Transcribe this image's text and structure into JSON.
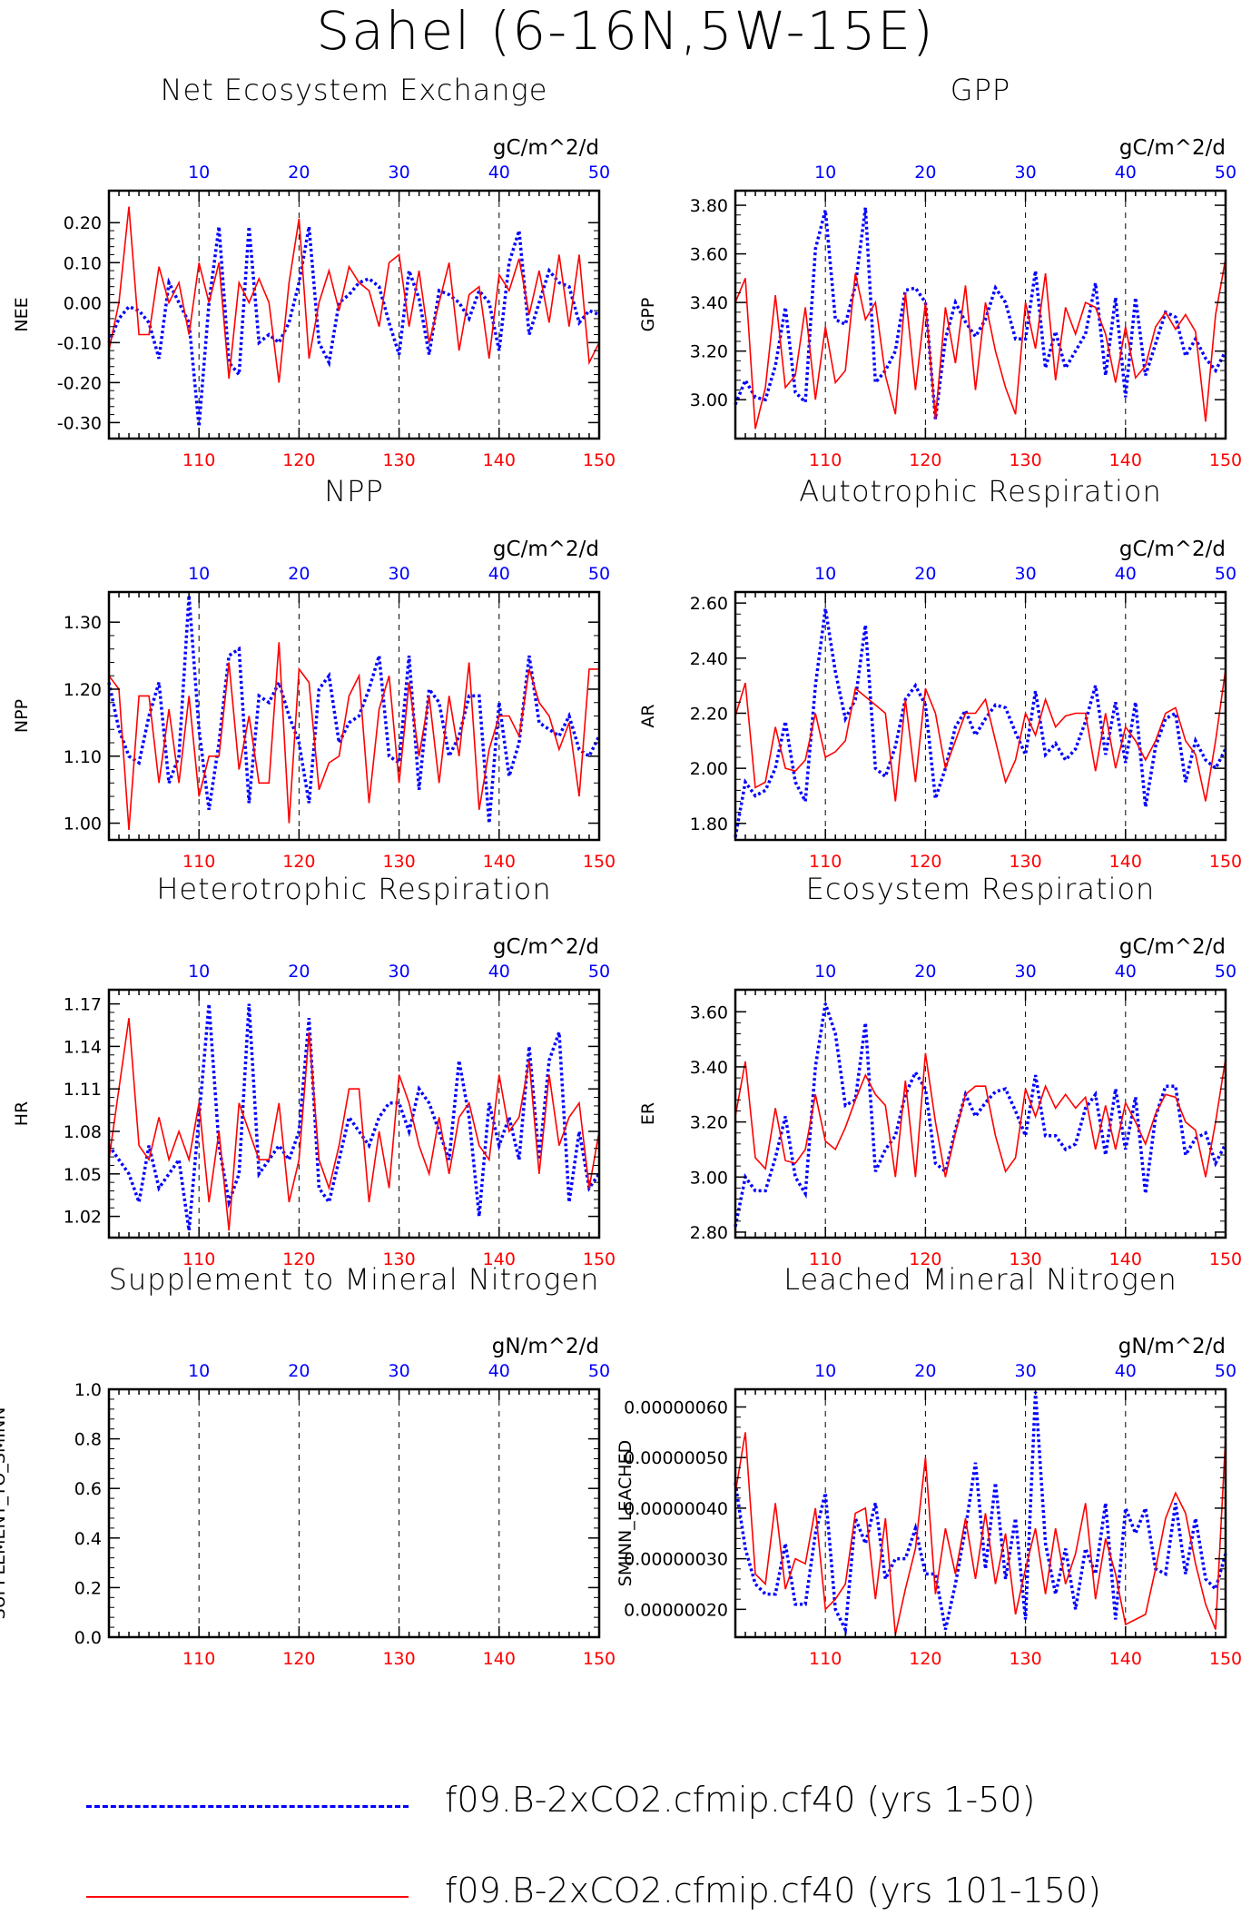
{
  "title": "Sahel (6-16N,5W-15E)",
  "colors": {
    "run1": "#0000ff",
    "run2": "#ff0000",
    "axis": "#000000"
  },
  "legend": [
    {
      "label": "f09.B-2xCO2.cfmip.cf40 (yrs 1-50)",
      "color": "#0000ff",
      "style": "dashed"
    },
    {
      "label": "f09.B-2xCO2.cfmip.cf40 (yrs 101-150)",
      "color": "#ff0000",
      "style": "solid"
    }
  ],
  "chart_data": [
    {
      "type": "line",
      "title": "Net Ecosystem Exchange",
      "ylabel": "NEE",
      "units": "gC/m^2/d",
      "ylim": [
        -0.34,
        0.28
      ],
      "yticks": [
        -0.3,
        -0.2,
        -0.1,
        0.0,
        0.1,
        0.2
      ],
      "ytick_labels": [
        "-0.30",
        "-0.20",
        "-0.10",
        "0.00",
        "0.10",
        "0.20"
      ],
      "bottom_x_labels": [
        "110",
        "120",
        "130",
        "140",
        "150"
      ],
      "top_x_labels": [
        "10",
        "20",
        "30",
        "40",
        "50"
      ],
      "series": [
        {
          "x_start": 1,
          "values": [
            -0.1,
            -0.04,
            -0.01,
            -0.02,
            -0.05,
            -0.14,
            0.05,
            0.0,
            -0.05,
            -0.31,
            0.0,
            0.19,
            -0.15,
            -0.18,
            0.19,
            -0.1,
            -0.08,
            -0.1,
            -0.05,
            0.05,
            0.19,
            -0.1,
            -0.15,
            0.0,
            0.02,
            0.05,
            0.06,
            0.04,
            -0.05,
            -0.13,
            0.08,
            0.01,
            -0.13,
            0.03,
            0.02,
            0.0,
            -0.04,
            0.03,
            0.0,
            -0.12,
            0.1,
            0.18,
            -0.08,
            0.0,
            0.08,
            0.05,
            0.04,
            -0.05,
            -0.02,
            -0.03
          ]
        },
        {
          "x_start": 101,
          "values": [
            -0.12,
            0.0,
            0.24,
            -0.08,
            -0.08,
            0.09,
            0.0,
            0.05,
            -0.08,
            0.1,
            0.0,
            0.1,
            -0.19,
            0.05,
            0.0,
            0.06,
            0.0,
            -0.2,
            0.05,
            0.21,
            -0.14,
            0.0,
            0.08,
            -0.02,
            0.09,
            0.05,
            0.03,
            -0.06,
            0.1,
            0.12,
            -0.06,
            0.08,
            -0.1,
            0.0,
            0.1,
            -0.12,
            0.02,
            0.04,
            -0.14,
            0.07,
            0.03,
            0.11,
            -0.03,
            0.08,
            -0.05,
            0.12,
            -0.06,
            0.12,
            -0.15,
            -0.1
          ]
        }
      ]
    },
    {
      "type": "line",
      "title": "GPP",
      "ylabel": "GPP",
      "units": "gC/m^2/d",
      "ylim": [
        2.84,
        3.86
      ],
      "yticks": [
        3.0,
        3.2,
        3.4,
        3.6,
        3.8
      ],
      "ytick_labels": [
        "3.00",
        "3.20",
        "3.40",
        "3.60",
        "3.80"
      ],
      "bottom_x_labels": [
        "110",
        "120",
        "130",
        "140",
        "150"
      ],
      "top_x_labels": [
        "10",
        "20",
        "30",
        "40",
        "50"
      ],
      "series": [
        {
          "x_start": 1,
          "values": [
            2.98,
            3.08,
            3.01,
            3.0,
            3.14,
            3.38,
            3.03,
            2.99,
            3.62,
            3.78,
            3.33,
            3.31,
            3.47,
            3.79,
            3.07,
            3.12,
            3.2,
            3.45,
            3.46,
            3.4,
            2.92,
            3.25,
            3.4,
            3.32,
            3.26,
            3.33,
            3.46,
            3.4,
            3.25,
            3.25,
            3.53,
            3.13,
            3.28,
            3.13,
            3.2,
            3.27,
            3.48,
            3.1,
            3.42,
            3.01,
            3.42,
            3.1,
            3.23,
            3.36,
            3.34,
            3.18,
            3.25,
            3.17,
            3.12,
            3.2
          ]
        },
        {
          "x_start": 101,
          "values": [
            3.4,
            3.5,
            2.88,
            3.05,
            3.43,
            3.05,
            3.1,
            3.38,
            3.0,
            3.3,
            3.07,
            3.12,
            3.52,
            3.33,
            3.4,
            3.1,
            2.94,
            3.44,
            3.04,
            3.4,
            2.92,
            3.38,
            3.15,
            3.47,
            3.04,
            3.4,
            3.2,
            3.05,
            2.94,
            3.4,
            3.21,
            3.52,
            3.08,
            3.38,
            3.27,
            3.4,
            3.38,
            3.27,
            3.07,
            3.3,
            3.09,
            3.14,
            3.3,
            3.36,
            3.29,
            3.35,
            3.28,
            2.91,
            3.35,
            3.58
          ]
        }
      ]
    },
    {
      "type": "line",
      "title": "NPP",
      "ylabel": "NPP",
      "units": "gC/m^2/d",
      "ylim": [
        0.975,
        1.345
      ],
      "yticks": [
        1.0,
        1.1,
        1.2,
        1.3
      ],
      "ytick_labels": [
        "1.00",
        "1.10",
        "1.20",
        "1.30"
      ],
      "bottom_x_labels": [
        "110",
        "120",
        "130",
        "140",
        "150"
      ],
      "top_x_labels": [
        "10",
        "20",
        "30",
        "40",
        "50"
      ],
      "series": [
        {
          "x_start": 1,
          "values": [
            1.21,
            1.14,
            1.1,
            1.09,
            1.16,
            1.21,
            1.06,
            1.1,
            1.34,
            1.14,
            1.02,
            1.12,
            1.25,
            1.26,
            1.03,
            1.19,
            1.18,
            1.21,
            1.16,
            1.12,
            1.03,
            1.2,
            1.22,
            1.12,
            1.15,
            1.16,
            1.2,
            1.25,
            1.1,
            1.09,
            1.25,
            1.05,
            1.2,
            1.18,
            1.1,
            1.13,
            1.19,
            1.19,
            1.0,
            1.18,
            1.07,
            1.12,
            1.25,
            1.15,
            1.14,
            1.13,
            1.16,
            1.11,
            1.1,
            1.13
          ]
        },
        {
          "x_start": 101,
          "values": [
            1.22,
            1.2,
            0.99,
            1.19,
            1.19,
            1.06,
            1.17,
            1.06,
            1.19,
            1.04,
            1.1,
            1.1,
            1.24,
            1.08,
            1.16,
            1.06,
            1.06,
            1.27,
            1.0,
            1.23,
            1.21,
            1.05,
            1.09,
            1.1,
            1.19,
            1.22,
            1.03,
            1.17,
            1.22,
            1.06,
            1.21,
            1.1,
            1.19,
            1.06,
            1.19,
            1.1,
            1.24,
            1.02,
            1.11,
            1.16,
            1.16,
            1.13,
            1.23,
            1.18,
            1.16,
            1.11,
            1.15,
            1.04,
            1.23,
            1.23
          ]
        }
      ]
    },
    {
      "type": "line",
      "title": "Autotrophic Respiration",
      "ylabel": "AR",
      "units": "gC/m^2/d",
      "ylim": [
        1.74,
        2.64
      ],
      "yticks": [
        1.8,
        2.0,
        2.2,
        2.4,
        2.6
      ],
      "ytick_labels": [
        "1.80",
        "2.00",
        "2.20",
        "2.40",
        "2.60"
      ],
      "bottom_x_labels": [
        "110",
        "120",
        "130",
        "140",
        "150"
      ],
      "top_x_labels": [
        "10",
        "20",
        "30",
        "40",
        "50"
      ],
      "series": [
        {
          "x_start": 1,
          "values": [
            1.75,
            1.95,
            1.9,
            1.92,
            2.0,
            2.17,
            1.95,
            1.88,
            2.3,
            2.58,
            2.35,
            2.18,
            2.25,
            2.52,
            2.0,
            1.97,
            2.08,
            2.25,
            2.3,
            2.23,
            1.89,
            2.0,
            2.15,
            2.21,
            2.12,
            2.18,
            2.23,
            2.22,
            2.13,
            2.05,
            2.28,
            2.05,
            2.09,
            2.03,
            2.07,
            2.17,
            2.3,
            2.05,
            2.24,
            2.02,
            2.24,
            1.86,
            2.08,
            2.18,
            2.2,
            1.95,
            2.1,
            2.03,
            2.0,
            2.07
          ]
        },
        {
          "x_start": 101,
          "values": [
            2.19,
            2.31,
            1.93,
            1.95,
            2.15,
            2.0,
            1.99,
            2.03,
            2.2,
            2.04,
            2.06,
            2.1,
            2.29,
            2.26,
            2.23,
            2.2,
            1.88,
            2.25,
            1.95,
            2.29,
            2.2,
            2.0,
            2.1,
            2.2,
            2.2,
            2.25,
            2.1,
            1.95,
            2.03,
            2.2,
            2.12,
            2.25,
            2.15,
            2.19,
            2.2,
            2.2,
            1.99,
            2.2,
            2.0,
            2.15,
            2.1,
            2.03,
            2.1,
            2.2,
            2.22,
            2.1,
            2.05,
            1.88,
            2.1,
            2.36
          ]
        }
      ]
    },
    {
      "type": "line",
      "title": "Heterotrophic Respiration",
      "ylabel": "HR",
      "units": "gC/m^2/d",
      "ylim": [
        1.005,
        1.18
      ],
      "yticks": [
        1.02,
        1.05,
        1.08,
        1.11,
        1.14,
        1.17
      ],
      "ytick_labels": [
        "1.02",
        "1.05",
        "1.08",
        "1.11",
        "1.14",
        "1.17"
      ],
      "bottom_x_labels": [
        "110",
        "120",
        "130",
        "140",
        "150"
      ],
      "top_x_labels": [
        "10",
        "20",
        "30",
        "40",
        "50"
      ],
      "series": [
        {
          "x_start": 1,
          "values": [
            1.07,
            1.06,
            1.05,
            1.03,
            1.07,
            1.04,
            1.05,
            1.06,
            1.01,
            1.09,
            1.17,
            1.07,
            1.03,
            1.05,
            1.17,
            1.05,
            1.06,
            1.07,
            1.06,
            1.08,
            1.16,
            1.04,
            1.03,
            1.06,
            1.09,
            1.08,
            1.07,
            1.09,
            1.1,
            1.1,
            1.08,
            1.11,
            1.1,
            1.08,
            1.06,
            1.13,
            1.09,
            1.02,
            1.1,
            1.07,
            1.09,
            1.06,
            1.14,
            1.06,
            1.13,
            1.15,
            1.03,
            1.08,
            1.04,
            1.05
          ]
        },
        {
          "x_start": 101,
          "values": [
            1.06,
            1.11,
            1.16,
            1.07,
            1.06,
            1.09,
            1.06,
            1.08,
            1.06,
            1.1,
            1.03,
            1.08,
            1.01,
            1.1,
            1.08,
            1.06,
            1.06,
            1.1,
            1.03,
            1.06,
            1.15,
            1.06,
            1.04,
            1.07,
            1.11,
            1.11,
            1.03,
            1.08,
            1.04,
            1.12,
            1.1,
            1.07,
            1.05,
            1.09,
            1.05,
            1.09,
            1.1,
            1.07,
            1.06,
            1.12,
            1.08,
            1.09,
            1.13,
            1.05,
            1.12,
            1.07,
            1.09,
            1.1,
            1.04,
            1.08
          ]
        }
      ]
    },
    {
      "type": "line",
      "title": "Ecosystem Respiration",
      "ylabel": "ER",
      "units": "gC/m^2/d",
      "ylim": [
        2.78,
        3.68
      ],
      "yticks": [
        2.8,
        3.0,
        3.2,
        3.4,
        3.6
      ],
      "ytick_labels": [
        "2.80",
        "3.00",
        "3.20",
        "3.40",
        "3.60"
      ],
      "bottom_x_labels": [
        "110",
        "120",
        "130",
        "140",
        "150"
      ],
      "top_x_labels": [
        "10",
        "20",
        "30",
        "40",
        "50"
      ],
      "series": [
        {
          "x_start": 1,
          "values": [
            2.82,
            3.0,
            2.95,
            2.95,
            3.07,
            3.22,
            3.0,
            2.94,
            3.4,
            3.63,
            3.52,
            3.26,
            3.28,
            3.56,
            3.02,
            3.1,
            3.15,
            3.3,
            3.38,
            3.32,
            3.05,
            3.02,
            3.17,
            3.3,
            3.22,
            3.27,
            3.31,
            3.32,
            3.24,
            3.15,
            3.37,
            3.15,
            3.15,
            3.1,
            3.12,
            3.25,
            3.3,
            3.08,
            3.32,
            3.1,
            3.29,
            2.94,
            3.22,
            3.33,
            3.33,
            3.08,
            3.14,
            3.16,
            3.05,
            3.12
          ]
        },
        {
          "x_start": 101,
          "values": [
            3.22,
            3.42,
            3.07,
            3.03,
            3.25,
            3.06,
            3.05,
            3.1,
            3.3,
            3.13,
            3.1,
            3.18,
            3.28,
            3.37,
            3.3,
            3.26,
            3.0,
            3.35,
            3.0,
            3.45,
            3.2,
            3.0,
            3.16,
            3.3,
            3.33,
            3.33,
            3.15,
            3.02,
            3.07,
            3.32,
            3.22,
            3.33,
            3.25,
            3.3,
            3.25,
            3.29,
            3.1,
            3.26,
            3.1,
            3.27,
            3.2,
            3.12,
            3.23,
            3.3,
            3.29,
            3.2,
            3.17,
            3.0,
            3.2,
            3.43
          ]
        }
      ]
    },
    {
      "type": "line",
      "title": "Supplement to Mineral Nitrogen",
      "ylabel": "SUPPLEMENT_TO_SMINN",
      "units": "gN/m^2/d",
      "ylim": [
        0.0,
        1.0
      ],
      "yticks": [
        0.0,
        0.2,
        0.4,
        0.6,
        0.8,
        1.0
      ],
      "ytick_labels": [
        "0.0",
        "0.2",
        "0.4",
        "0.6",
        "0.8",
        "1.0"
      ],
      "bottom_x_labels": [
        "110",
        "120",
        "130",
        "140",
        "150"
      ],
      "top_x_labels": [
        "10",
        "20",
        "30",
        "40",
        "50"
      ],
      "series": []
    },
    {
      "type": "line",
      "title": "Leached Mineral Nitrogen",
      "ylabel": "SMINN_LEACHED",
      "units": "gN/m^2/d",
      "ylim": [
        1.45e-07,
        6.35e-07
      ],
      "yticks": [
        2e-07,
        3e-07,
        4e-07,
        5e-07,
        6e-07
      ],
      "ytick_labels": [
        "0.00000020",
        "0.00000030",
        "0.00000040",
        "0.00000050",
        "0.00000060"
      ],
      "bottom_x_labels": [
        "110",
        "120",
        "130",
        "140",
        "150"
      ],
      "top_x_labels": [
        "10",
        "20",
        "30",
        "40",
        "50"
      ],
      "series": [
        {
          "x_start": 1,
          "values": [
            4.5e-07,
            3.2e-07,
            2.5e-07,
            2.3e-07,
            2.3e-07,
            3.3e-07,
            2.1e-07,
            2.1e-07,
            3.5e-07,
            4.3e-07,
            2e-07,
            1.6e-07,
            3.8e-07,
            3.3e-07,
            4.1e-07,
            2.6e-07,
            3e-07,
            3e-07,
            3.6e-07,
            2.7e-07,
            2.7e-07,
            1.6e-07,
            2.5e-07,
            3.6e-07,
            4.9e-07,
            2.8e-07,
            4.5e-07,
            2.6e-07,
            3.8e-07,
            1.8e-07,
            6.3e-07,
            3.3e-07,
            2.3e-07,
            3.2e-07,
            2e-07,
            3.2e-07,
            2.7e-07,
            4.1e-07,
            1.8e-07,
            4e-07,
            3.5e-07,
            4e-07,
            2.8e-07,
            2.7e-07,
            4.1e-07,
            2.7e-07,
            3.8e-07,
            2.6e-07,
            2.4e-07,
            3.1e-07
          ]
        },
        {
          "x_start": 101,
          "values": [
            4.3e-07,
            5.5e-07,
            2.7e-07,
            2.5e-07,
            4.1e-07,
            2.4e-07,
            3e-07,
            2.9e-07,
            4e-07,
            2e-07,
            2.2e-07,
            2.5e-07,
            3.9e-07,
            4e-07,
            2.2e-07,
            3.8e-07,
            1.5e-07,
            2.4e-07,
            3.2e-07,
            5e-07,
            2.3e-07,
            3.6e-07,
            2.7e-07,
            3.8e-07,
            2.6e-07,
            3.9e-07,
            2.5e-07,
            3.5e-07,
            1.9e-07,
            2.8e-07,
            3.6e-07,
            2.3e-07,
            3.6e-07,
            2.5e-07,
            3.1e-07,
            4.1e-07,
            2.2e-07,
            3.4e-07,
            2.7e-07,
            1.7e-07,
            1.8e-07,
            1.9e-07,
            2.8e-07,
            3.8e-07,
            4.3e-07,
            3.9e-07,
            2.9e-07,
            2.1e-07,
            1.6e-07,
            5.4e-07
          ]
        }
      ]
    }
  ]
}
